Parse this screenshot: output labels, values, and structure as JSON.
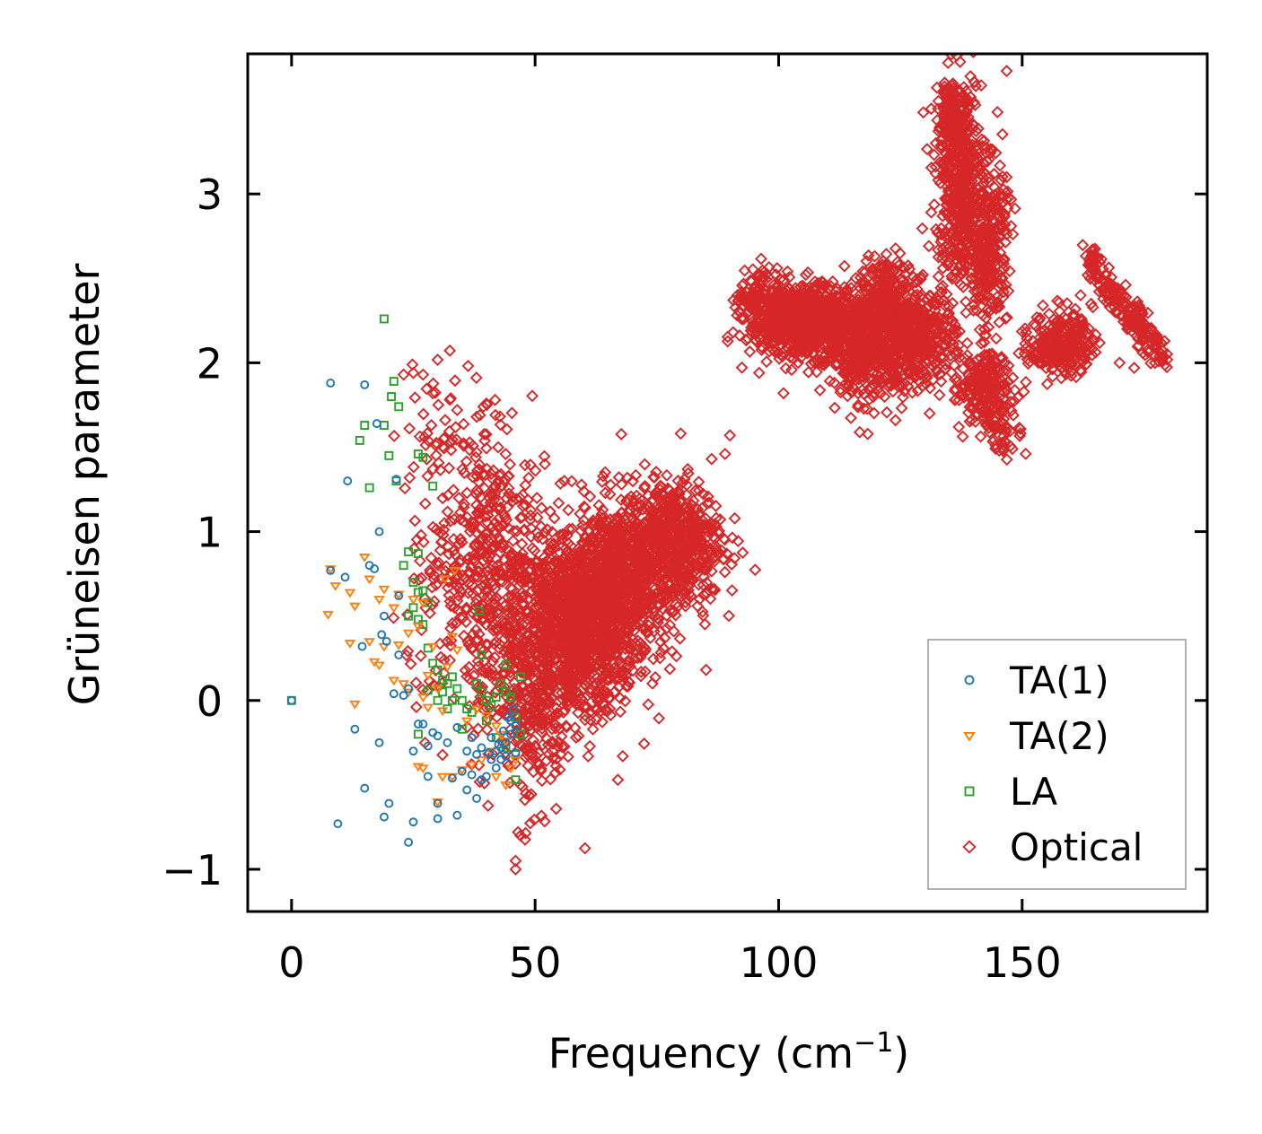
{
  "chart_data": {
    "type": "scatter",
    "title": "",
    "xlabel": "Frequency (cm",
    "xlabel_sup": "−1",
    "xlabel_end": ")",
    "ylabel": "Grüneisen parameter",
    "xlim": [
      -9,
      188
    ],
    "ylim": [
      -1.25,
      3.83
    ],
    "xticks": [
      0,
      50,
      100,
      150
    ],
    "xtick_labels": [
      "0",
      "50",
      "100",
      "150"
    ],
    "yticks": [
      -1,
      0,
      1,
      2,
      3
    ],
    "ytick_labels": [
      "−1",
      "0",
      "1",
      "2",
      "3"
    ],
    "grid": false,
    "legend_position": "lower-right",
    "series": [
      {
        "name": "TA(1)",
        "marker": "circle",
        "color": "#1f77b4",
        "points": [
          [
            0,
            0
          ],
          [
            8,
            1.88
          ],
          [
            15,
            1.87
          ],
          [
            17.5,
            1.64
          ],
          [
            11.5,
            1.3
          ],
          [
            21.5,
            1.31
          ],
          [
            18,
            1.0
          ],
          [
            8,
            0.77
          ],
          [
            11,
            0.73
          ],
          [
            16,
            0.8
          ],
          [
            17,
            0.78
          ],
          [
            22,
            0.62
          ],
          [
            19,
            0.5
          ],
          [
            18.5,
            0.39
          ],
          [
            14.5,
            0.32
          ],
          [
            19.5,
            0.35
          ],
          [
            22,
            0.27
          ],
          [
            24,
            0.07
          ],
          [
            21,
            0.04
          ],
          [
            23,
            0.03
          ],
          [
            13,
            -0.17
          ],
          [
            18,
            -0.25
          ],
          [
            25,
            -0.3
          ],
          [
            28,
            -0.27
          ],
          [
            26,
            -0.14
          ],
          [
            27,
            -0.14
          ],
          [
            29,
            -0.19
          ],
          [
            30,
            -0.21
          ],
          [
            32,
            -0.25
          ],
          [
            34,
            -0.16
          ],
          [
            36,
            -0.3
          ],
          [
            37,
            -0.44
          ],
          [
            35,
            -0.42
          ],
          [
            33,
            -0.46
          ],
          [
            28,
            -0.45
          ],
          [
            15,
            -0.52
          ],
          [
            20,
            -0.61
          ],
          [
            30,
            -0.61
          ],
          [
            19,
            -0.69
          ],
          [
            25,
            -0.72
          ],
          [
            30,
            -0.7
          ],
          [
            34,
            -0.68
          ],
          [
            24,
            -0.84
          ],
          [
            9.5,
            -0.73
          ],
          [
            36,
            -0.53
          ],
          [
            38,
            -0.58
          ],
          [
            39,
            -0.47
          ],
          [
            40,
            -0.45
          ],
          [
            41,
            -0.35
          ],
          [
            42,
            -0.3
          ],
          [
            43,
            -0.28
          ],
          [
            44,
            -0.25
          ],
          [
            45,
            -0.2
          ],
          [
            44.5,
            -0.1
          ],
          [
            45.5,
            -0.05
          ],
          [
            43,
            -0.35
          ],
          [
            42,
            -0.4
          ],
          [
            40.5,
            -0.31
          ],
          [
            39,
            -0.28
          ],
          [
            41,
            -0.22
          ],
          [
            43.5,
            -0.18
          ],
          [
            46,
            -0.15
          ],
          [
            45,
            -0.12
          ],
          [
            44,
            -0.33
          ],
          [
            46,
            -0.31
          ],
          [
            42.5,
            -0.26
          ],
          [
            38,
            -0.32
          ],
          [
            37,
            -0.22
          ]
        ]
      },
      {
        "name": "TA(2)",
        "marker": "triangle-down",
        "color": "#ff7f0e",
        "points": [
          [
            8,
            0.78
          ],
          [
            15,
            0.85
          ],
          [
            19,
            0.66
          ],
          [
            22,
            0.63
          ],
          [
            16,
            0.72
          ],
          [
            12,
            0.64
          ],
          [
            9,
            0.68
          ],
          [
            7.5,
            0.51
          ],
          [
            13,
            0.56
          ],
          [
            18,
            0.6
          ],
          [
            21,
            0.55
          ],
          [
            25,
            0.6
          ],
          [
            27,
            0.58
          ],
          [
            26,
            0.44
          ],
          [
            24,
            0.4
          ],
          [
            22,
            0.33
          ],
          [
            19,
            0.32
          ],
          [
            17,
            0.23
          ],
          [
            18,
            0.21
          ],
          [
            12,
            0.34
          ],
          [
            16,
            0.35
          ],
          [
            21,
            0.12
          ],
          [
            23,
            0.1
          ],
          [
            24,
            0.05
          ],
          [
            27,
            0.02
          ],
          [
            30,
            0.07
          ],
          [
            13,
            -0.02
          ],
          [
            28,
            -0.04
          ],
          [
            31,
            -0.06
          ],
          [
            33,
            0.38
          ],
          [
            29,
            0.32
          ],
          [
            36,
            -0.12
          ],
          [
            38,
            -0.05
          ],
          [
            40,
            -0.09
          ],
          [
            42,
            -0.15
          ],
          [
            43,
            -0.2
          ],
          [
            44,
            -0.24
          ],
          [
            41,
            -0.3
          ],
          [
            39,
            -0.35
          ],
          [
            37,
            -0.38
          ],
          [
            35,
            -0.41
          ],
          [
            33,
            -0.45
          ],
          [
            31,
            -0.45
          ],
          [
            27,
            -0.4
          ],
          [
            26,
            -0.39
          ],
          [
            30,
            -0.6
          ],
          [
            31.5,
            0.72
          ],
          [
            33.5,
            0.77
          ],
          [
            42,
            -0.45
          ],
          [
            44,
            -0.5
          ],
          [
            45,
            -0.4
          ],
          [
            46,
            -0.35
          ],
          [
            34,
            0.3
          ],
          [
            28,
            0.15
          ],
          [
            32,
            0.2
          ]
        ]
      },
      {
        "name": "LA",
        "marker": "square",
        "color": "#2ca02c",
        "points": [
          [
            0,
            0
          ],
          [
            19,
            2.26
          ],
          [
            21,
            1.89
          ],
          [
            20.5,
            1.8
          ],
          [
            22,
            1.74
          ],
          [
            15,
            1.63
          ],
          [
            19,
            1.63
          ],
          [
            14,
            1.54
          ],
          [
            20,
            1.45
          ],
          [
            26,
            1.46
          ],
          [
            27,
            1.44
          ],
          [
            16,
            1.26
          ],
          [
            21.5,
            1.3
          ],
          [
            29,
            1.27
          ],
          [
            24,
            0.88
          ],
          [
            26,
            0.87
          ],
          [
            23,
            0.8
          ],
          [
            25,
            0.7
          ],
          [
            26,
            0.64
          ],
          [
            27,
            0.65
          ],
          [
            28,
            0.58
          ],
          [
            25,
            0.55
          ],
          [
            24,
            0.5
          ],
          [
            26,
            0.48
          ],
          [
            27,
            0.45
          ],
          [
            28,
            0.31
          ],
          [
            29,
            0.22
          ],
          [
            30,
            0.18
          ],
          [
            31,
            0.12
          ],
          [
            32,
            0.1
          ],
          [
            33,
            0.14
          ],
          [
            34,
            0.07
          ],
          [
            35,
            0.0
          ],
          [
            36,
            -0.05
          ],
          [
            37,
            -0.07
          ],
          [
            38,
            0.1
          ],
          [
            39,
            0.05
          ],
          [
            40,
            0.0
          ],
          [
            41,
            -0.03
          ],
          [
            42,
            0.02
          ],
          [
            43,
            0.1
          ],
          [
            44,
            0.05
          ],
          [
            45,
            0.02
          ],
          [
            46,
            -0.1
          ],
          [
            47,
            -0.2
          ],
          [
            46,
            -0.32
          ],
          [
            46,
            -0.47
          ],
          [
            39,
            0.27
          ],
          [
            38.5,
            0.53
          ],
          [
            44,
            0.21
          ],
          [
            47,
            0.14
          ],
          [
            28,
            0.06
          ],
          [
            30,
            0.0
          ],
          [
            32,
            -0.05
          ],
          [
            26,
            -0.2
          ],
          [
            35,
            -0.17
          ],
          [
            40,
            -0.12
          ],
          [
            42,
            -0.22
          ],
          [
            44,
            -0.28
          ],
          [
            31,
            0.05
          ],
          [
            33,
            0.0
          ]
        ]
      },
      {
        "name": "Optical",
        "marker": "diamond",
        "color": "#d62728",
        "points": [],
        "clusters": [
          {
            "center": [
              58,
              0.42
            ],
            "spread": [
              8,
              0.33
            ],
            "count": 1100
          },
          {
            "center": [
              67,
              0.7
            ],
            "spread": [
              8,
              0.3
            ],
            "count": 800
          },
          {
            "center": [
              78,
              0.95
            ],
            "spread": [
              6.5,
              0.22
            ],
            "count": 550
          },
          {
            "center": [
              45,
              0.55
            ],
            "spread": [
              6,
              0.55
            ],
            "count": 330
          },
          {
            "center": [
              35,
              0.6
            ],
            "spread": [
              7,
              0.45
            ],
            "count": 200
          },
          {
            "center": [
              40,
              1.3
            ],
            "spread": [
              5,
              0.3
            ],
            "count": 90
          },
          {
            "center": [
              30,
              1.6
            ],
            "spread": [
              4,
              0.25
            ],
            "count": 40
          },
          {
            "center": [
              50,
              -0.15
            ],
            "spread": [
              5,
              0.3
            ],
            "count": 160
          },
          {
            "center": [
              105,
              2.25
            ],
            "spread": [
              7,
              0.13
            ],
            "count": 900
          },
          {
            "center": [
              118,
              2.12
            ],
            "spread": [
              5,
              0.2
            ],
            "count": 500
          },
          {
            "center": [
              128,
              2.15
            ],
            "spread": [
              5,
              0.18
            ],
            "count": 450
          },
          {
            "center": [
              137,
              3.1
            ],
            "spread": [
              3,
              0.4
            ],
            "count": 500
          },
          {
            "center": [
              143,
              2.7
            ],
            "spread": [
              2.5,
              0.3
            ],
            "count": 320
          },
          {
            "center": [
              142,
              1.85
            ],
            "spread": [
              4,
              0.13
            ],
            "count": 220
          },
          {
            "center": [
              158,
              2.12
            ],
            "spread": [
              4,
              0.12
            ],
            "count": 260
          },
          {
            "center": [
              146,
              1.6
            ],
            "spread": [
              2.5,
              0.1
            ],
            "count": 45
          },
          {
            "center": [
              122,
              2.45
            ],
            "spread": [
              3,
              0.12
            ],
            "count": 130
          }
        ],
        "lines": [
          {
            "from": [
              163,
              2.63
            ],
            "to": [
              179,
              2.02
            ],
            "count": 200
          },
          {
            "from": [
              134,
              3.6
            ],
            "to": [
              137,
              3.3
            ],
            "count": 60
          },
          {
            "from": [
              92,
              2.35
            ],
            "to": [
              98,
              2.5
            ],
            "count": 60
          }
        ],
        "extra_points": [
          [
            46,
            -0.95
          ],
          [
            46,
            -1.0
          ],
          [
            47,
            -0.8
          ],
          [
            46.5,
            -0.78
          ],
          [
            67,
            -0.47
          ],
          [
            68,
            -0.33
          ],
          [
            23,
            1.93
          ],
          [
            25,
            1.94
          ],
          [
            27,
            1.93
          ],
          [
            29,
            1.82
          ],
          [
            34,
            1.72
          ],
          [
            38,
            1.68
          ],
          [
            52,
            1.4
          ],
          [
            56,
            1.3
          ],
          [
            90,
            1.57
          ],
          [
            89,
            1.46
          ],
          [
            170,
            2.0
          ],
          [
            173,
            1.97
          ],
          [
            178,
            2.01
          ],
          [
            162,
            2.4
          ],
          [
            168,
            2.33
          ],
          [
            148,
            1.49
          ],
          [
            101,
            1.82
          ],
          [
            96,
            1.94
          ],
          [
            104,
            2.0
          ],
          [
            124,
            1.66
          ],
          [
            131,
            1.7
          ],
          [
            137,
            1.62
          ]
        ]
      }
    ]
  }
}
